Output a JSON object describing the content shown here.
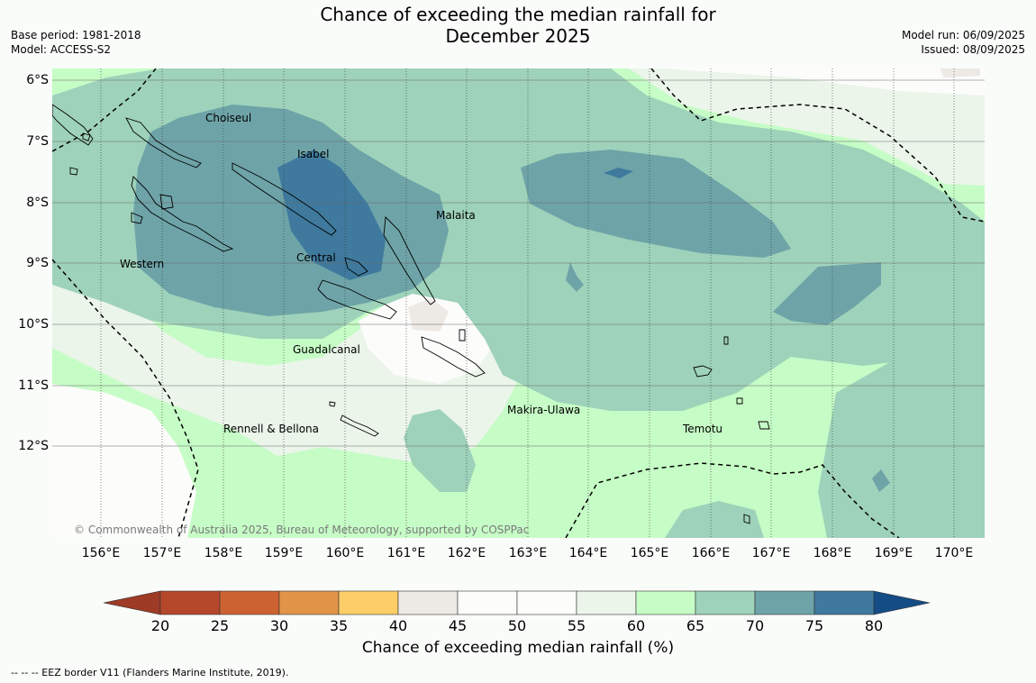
{
  "header": {
    "title_line1": "Chance of exceeding the median rainfall for",
    "title_line2": "December 2025",
    "base_period": "Base period: 1981-2018",
    "model": "Model: ACCESS-S2",
    "model_run": "Model run: 06/09/2025",
    "issued": "Issued: 08/09/2025"
  },
  "map": {
    "lon_labels": [
      "156°E",
      "157°E",
      "158°E",
      "159°E",
      "160°E",
      "161°E",
      "162°E",
      "163°E",
      "164°E",
      "165°E",
      "166°E",
      "167°E",
      "168°E",
      "169°E",
      "170°E"
    ],
    "lat_labels": [
      "6°S",
      "7°S",
      "8°S",
      "9°S",
      "10°S",
      "11°S",
      "12°S"
    ],
    "provinces": {
      "choiseul": "Choiseul",
      "isabel": "Isabel",
      "malaita": "Malaita",
      "western": "Western",
      "central": "Central",
      "guadalcanal": "Guadalcanal",
      "makira": "Makira-Ulawa",
      "rennell": "Rennell & Bellona",
      "temotu": "Temotu"
    },
    "copyright": "© Commonwealth of Australia 2025, Bureau of Meteorology, supported by COSPPac"
  },
  "colorbar": {
    "ticks": [
      "20",
      "25",
      "30",
      "35",
      "40",
      "45",
      "50",
      "55",
      "60",
      "65",
      "70",
      "75",
      "80"
    ],
    "colors": [
      "#9e3b26",
      "#b5482a",
      "#cc6231",
      "#e29449",
      "#fdce67",
      "#ede9e4",
      "#fcfcfb",
      "#fcfcfb",
      "#ebf5ea",
      "#c6fcc6",
      "#9ed2ba",
      "#6ea4a8",
      "#3f7a9e",
      "#144c86"
    ],
    "label": "Chance of exceeding median rainfall (%)"
  },
  "footer": {
    "eez_note": "-- -- -- EEZ border V11 (Flanders Marine Institute, 2019)."
  }
}
